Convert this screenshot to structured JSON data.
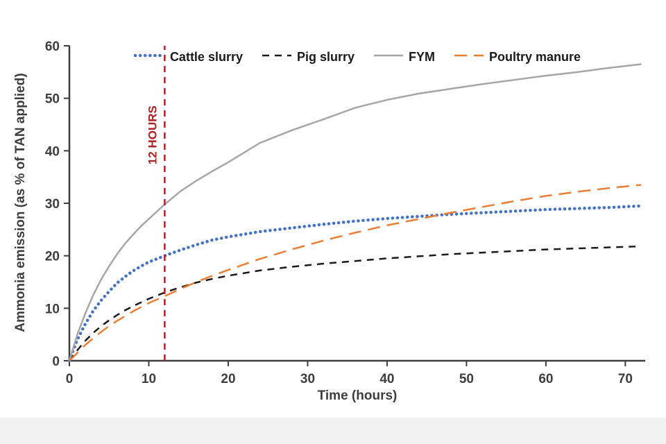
{
  "chart_data": {
    "type": "line",
    "title": "",
    "xlabel": "Time (hours)",
    "ylabel": "Ammonia emission (as % of TAN applied)",
    "xlim": [
      0,
      72.5
    ],
    "ylim": [
      0,
      60
    ],
    "x_ticks": [
      0,
      10,
      20,
      30,
      40,
      50,
      60,
      70
    ],
    "y_ticks": [
      0,
      10,
      20,
      30,
      40,
      50,
      60
    ],
    "grid": false,
    "legend_position": "top",
    "axis_color": "#3d3d3d",
    "annotation": {
      "label": "12 HOURS",
      "x": 12,
      "color": "#b02020"
    },
    "series": [
      {
        "name": "Cattle slurry",
        "color": "#4472c4",
        "style": "dotted",
        "points": [
          [
            0,
            0
          ],
          [
            1,
            4
          ],
          [
            2,
            7
          ],
          [
            3,
            9.5
          ],
          [
            4,
            11.5
          ],
          [
            5,
            13.2
          ],
          [
            6,
            14.8
          ],
          [
            7,
            16
          ],
          [
            8,
            17.1
          ],
          [
            9,
            18
          ],
          [
            10,
            18.8
          ],
          [
            12,
            20
          ],
          [
            14,
            21.1
          ],
          [
            16,
            22.1
          ],
          [
            18,
            23
          ],
          [
            20,
            23.6
          ],
          [
            24,
            24.6
          ],
          [
            28,
            25.3
          ],
          [
            32,
            26
          ],
          [
            36,
            26.6
          ],
          [
            40,
            27.1
          ],
          [
            44,
            27.5
          ],
          [
            48,
            27.9
          ],
          [
            52,
            28.2
          ],
          [
            56,
            28.5
          ],
          [
            60,
            28.8
          ],
          [
            64,
            29
          ],
          [
            68,
            29.2
          ],
          [
            72,
            29.5
          ]
        ]
      },
      {
        "name": "Pig slurry",
        "color": "#1a1a1a",
        "style": "dashed",
        "points": [
          [
            0,
            0
          ],
          [
            1,
            2
          ],
          [
            2,
            3.8
          ],
          [
            3,
            5.3
          ],
          [
            4,
            6.6
          ],
          [
            5,
            7.7
          ],
          [
            6,
            8.7
          ],
          [
            7,
            9.6
          ],
          [
            8,
            10.4
          ],
          [
            9,
            11.1
          ],
          [
            10,
            11.8
          ],
          [
            12,
            13
          ],
          [
            14,
            14
          ],
          [
            16,
            14.9
          ],
          [
            18,
            15.6
          ],
          [
            20,
            16.2
          ],
          [
            24,
            17.2
          ],
          [
            28,
            17.9
          ],
          [
            32,
            18.5
          ],
          [
            36,
            19
          ],
          [
            40,
            19.5
          ],
          [
            44,
            19.9
          ],
          [
            48,
            20.3
          ],
          [
            52,
            20.6
          ],
          [
            56,
            20.9
          ],
          [
            60,
            21.2
          ],
          [
            64,
            21.4
          ],
          [
            68,
            21.6
          ],
          [
            72,
            21.8
          ]
        ]
      },
      {
        "name": "FYM",
        "color": "#a6a6a6",
        "style": "solid",
        "points": [
          [
            0,
            0
          ],
          [
            1,
            5
          ],
          [
            2,
            9
          ],
          [
            3,
            12.5
          ],
          [
            4,
            15.5
          ],
          [
            5,
            18
          ],
          [
            6,
            20.3
          ],
          [
            7,
            22.3
          ],
          [
            8,
            24
          ],
          [
            9,
            25.6
          ],
          [
            10,
            27
          ],
          [
            12,
            29.8
          ],
          [
            14,
            32.3
          ],
          [
            16,
            34.3
          ],
          [
            18,
            36.1
          ],
          [
            20,
            37.8
          ],
          [
            24,
            41.5
          ],
          [
            28,
            43.9
          ],
          [
            32,
            46
          ],
          [
            36,
            48.2
          ],
          [
            40,
            49.7
          ],
          [
            44,
            50.9
          ],
          [
            48,
            51.8
          ],
          [
            52,
            52.7
          ],
          [
            56,
            53.5
          ],
          [
            60,
            54.3
          ],
          [
            64,
            55
          ],
          [
            68,
            55.8
          ],
          [
            72,
            56.5
          ]
        ]
      },
      {
        "name": "Poultry manure",
        "color": "#ed7d31",
        "style": "longdash",
        "points": [
          [
            0,
            0
          ],
          [
            1,
            1.5
          ],
          [
            2,
            3
          ],
          [
            3,
            4.3
          ],
          [
            4,
            5.5
          ],
          [
            5,
            6.6
          ],
          [
            6,
            7.6
          ],
          [
            7,
            8.5
          ],
          [
            8,
            9.4
          ],
          [
            9,
            10.2
          ],
          [
            10,
            11
          ],
          [
            12,
            12.3
          ],
          [
            14,
            13.7
          ],
          [
            16,
            15
          ],
          [
            18,
            16.2
          ],
          [
            20,
            17.3
          ],
          [
            24,
            19.4
          ],
          [
            28,
            21.2
          ],
          [
            32,
            22.9
          ],
          [
            36,
            24.4
          ],
          [
            40,
            25.8
          ],
          [
            44,
            27
          ],
          [
            48,
            28.2
          ],
          [
            52,
            29.3
          ],
          [
            56,
            30.4
          ],
          [
            60,
            31.4
          ],
          [
            64,
            32.2
          ],
          [
            68,
            32.9
          ],
          [
            72,
            33.5
          ]
        ]
      }
    ]
  }
}
